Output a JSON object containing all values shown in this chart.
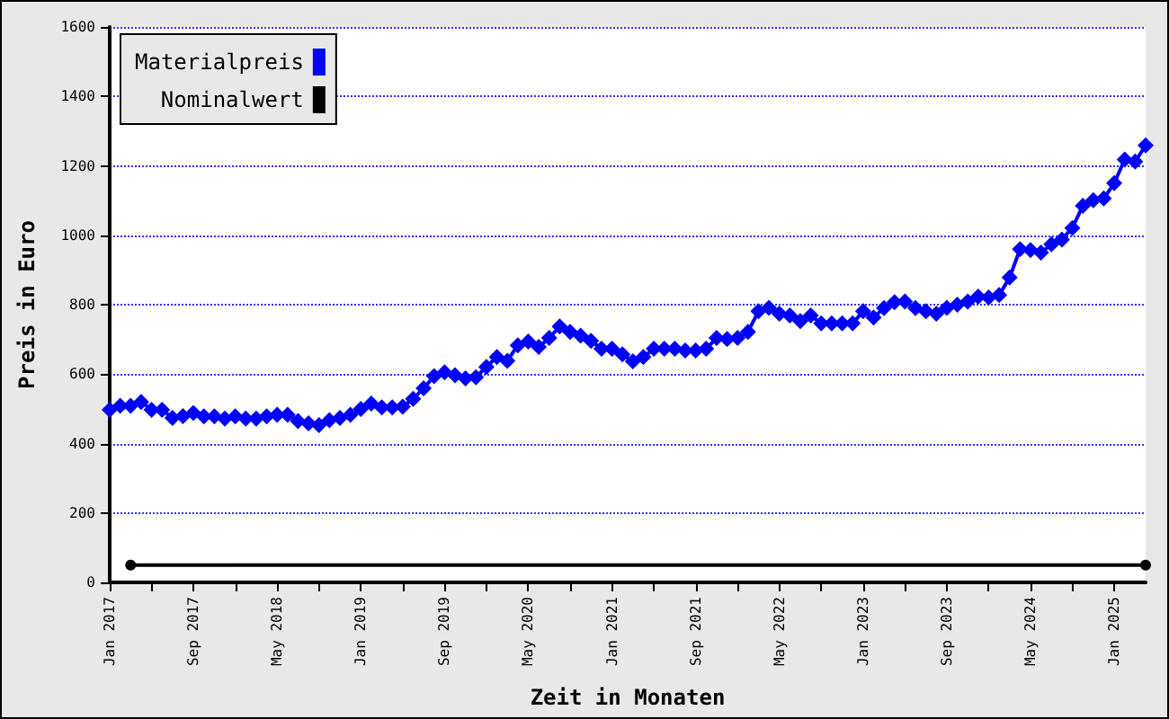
{
  "chart_data": {
    "type": "line",
    "xlabel": "Zeit in Monaten",
    "ylabel": "Preis in Euro",
    "xlim": [
      "2017-01",
      "2025-04"
    ],
    "xticks": [
      {
        "value": "2017-01",
        "label": "Jan 2017"
      },
      {
        "value": "2017-05",
        "label": null
      },
      {
        "value": "2017-09",
        "label": "Sep 2017"
      },
      {
        "value": "2018-01",
        "label": null
      },
      {
        "value": "2018-05",
        "label": "May 2018"
      },
      {
        "value": "2018-09",
        "label": null
      },
      {
        "value": "2019-01",
        "label": "Jan 2019"
      },
      {
        "value": "2019-05",
        "label": null
      },
      {
        "value": "2019-09",
        "label": "Sep 2019"
      },
      {
        "value": "2020-01",
        "label": null
      },
      {
        "value": "2020-05",
        "label": "May 2020"
      },
      {
        "value": "2020-09",
        "label": null
      },
      {
        "value": "2021-01",
        "label": "Jan 2021"
      },
      {
        "value": "2021-05",
        "label": null
      },
      {
        "value": "2021-09",
        "label": "Sep 2021"
      },
      {
        "value": "2022-01",
        "label": null
      },
      {
        "value": "2022-05",
        "label": "May 2022"
      },
      {
        "value": "2022-09",
        "label": null
      },
      {
        "value": "2023-01",
        "label": "Jan 2023"
      },
      {
        "value": "2023-05",
        "label": null
      },
      {
        "value": "2023-09",
        "label": "Sep 2023"
      },
      {
        "value": "2024-01",
        "label": null
      },
      {
        "value": "2024-05",
        "label": "May 2024"
      },
      {
        "value": "2024-09",
        "label": null
      },
      {
        "value": "2025-01",
        "label": "Jan 2025"
      }
    ],
    "ylim": [
      0,
      1600
    ],
    "yticks": [
      0,
      200,
      400,
      600,
      800,
      1000,
      1200,
      1400,
      1600
    ],
    "grid": "y",
    "legend": "top left",
    "line_style": "solid",
    "series": [
      {
        "name": "Materialpreis",
        "color": "#0000ff",
        "marker": "diamond",
        "x": [
          "2017-01",
          "2017-02",
          "2017-03",
          "2017-04",
          "2017-05",
          "2017-06",
          "2017-07",
          "2017-08",
          "2017-09",
          "2017-10",
          "2017-11",
          "2017-12",
          "2018-01",
          "2018-02",
          "2018-03",
          "2018-04",
          "2018-05",
          "2018-06",
          "2018-07",
          "2018-08",
          "2018-09",
          "2018-10",
          "2018-11",
          "2018-12",
          "2019-01",
          "2019-02",
          "2019-03",
          "2019-04",
          "2019-05",
          "2019-06",
          "2019-07",
          "2019-08",
          "2019-09",
          "2019-10",
          "2019-11",
          "2019-12",
          "2020-01",
          "2020-02",
          "2020-03",
          "2020-04",
          "2020-05",
          "2020-06",
          "2020-07",
          "2020-08",
          "2020-09",
          "2020-10",
          "2020-11",
          "2020-12",
          "2021-01",
          "2021-02",
          "2021-03",
          "2021-04",
          "2021-05",
          "2021-06",
          "2021-07",
          "2021-08",
          "2021-09",
          "2021-10",
          "2021-11",
          "2021-12",
          "2022-01",
          "2022-02",
          "2022-03",
          "2022-04",
          "2022-05",
          "2022-06",
          "2022-07",
          "2022-08",
          "2022-09",
          "2022-10",
          "2022-11",
          "2022-12",
          "2023-01",
          "2023-02",
          "2023-03",
          "2023-04",
          "2023-05",
          "2023-06",
          "2023-07",
          "2023-08",
          "2023-09",
          "2023-10",
          "2023-11",
          "2023-12",
          "2024-01",
          "2024-02",
          "2024-03",
          "2024-04",
          "2024-05",
          "2024-06",
          "2024-07",
          "2024-08",
          "2024-09",
          "2024-10",
          "2024-11",
          "2024-12",
          "2025-01",
          "2025-02",
          "2025-03",
          "2025-04"
        ],
        "values": [
          497,
          509,
          509,
          520,
          497,
          497,
          474,
          479,
          488,
          478,
          478,
          472,
          478,
          472,
          472,
          478,
          483,
          483,
          465,
          458,
          453,
          467,
          474,
          483,
          500,
          515,
          504,
          504,
          506,
          529,
          559,
          594,
          605,
          597,
          588,
          591,
          621,
          649,
          638,
          683,
          694,
          678,
          704,
          737,
          722,
          711,
          696,
          673,
          673,
          657,
          637,
          649,
          673,
          673,
          673,
          668,
          668,
          673,
          704,
          701,
          704,
          722,
          781,
          791,
          774,
          769,
          753,
          769,
          746,
          746,
          746,
          746,
          781,
          763,
          790,
          807,
          809,
          790,
          781,
          774,
          791,
          800,
          809,
          823,
          821,
          828,
          878,
          960,
          957,
          950,
          974,
          988,
          1021,
          1085,
          1101,
          1106,
          1150,
          1218,
          1212,
          1259
        ]
      },
      {
        "name": "Nominalwert",
        "color": "#000000",
        "marker": "circle",
        "x": [
          "2017-03",
          "2025-04"
        ],
        "values": [
          50,
          50
        ]
      }
    ]
  }
}
